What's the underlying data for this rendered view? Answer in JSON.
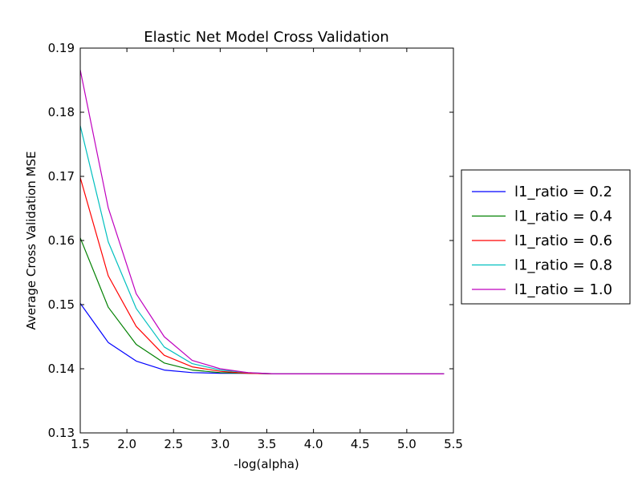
{
  "chart_data": {
    "type": "line",
    "title": "Elastic Net Model Cross Validation",
    "xlabel": "-log(alpha)",
    "ylabel": "Average Cross Validation MSE",
    "xlim": [
      1.5,
      5.5
    ],
    "ylim": [
      0.13,
      0.19
    ],
    "xticks": [
      1.5,
      2.0,
      2.5,
      3.0,
      3.5,
      4.0,
      4.5,
      5.0,
      5.5
    ],
    "xtick_labels": [
      "1.5",
      "2.0",
      "2.5",
      "3.0",
      "3.5",
      "4.0",
      "4.5",
      "5.0",
      "5.5"
    ],
    "yticks": [
      0.13,
      0.14,
      0.15,
      0.16,
      0.17,
      0.18,
      0.19
    ],
    "ytick_labels": [
      "0.13",
      "0.14",
      "0.15",
      "0.16",
      "0.17",
      "0.18",
      "0.19"
    ],
    "grid": false,
    "legend_position": "outside-right",
    "x": [
      1.5,
      1.8,
      2.1,
      2.4,
      2.7,
      3.0,
      3.3,
      3.6,
      3.9,
      4.2,
      4.5,
      4.8,
      5.1,
      5.4
    ],
    "series": [
      {
        "name": "l1_ratio = 0.2",
        "color": "#0000ff",
        "values": [
          0.1502,
          0.1441,
          0.1412,
          0.1398,
          0.1394,
          0.1393,
          0.1393,
          0.1392,
          0.1392,
          0.1392,
          0.1392,
          0.1392,
          0.1392,
          0.1392
        ]
      },
      {
        "name": "l1_ratio = 0.4",
        "color": "#008000",
        "values": [
          0.1604,
          0.1496,
          0.1438,
          0.1409,
          0.1398,
          0.1394,
          0.1393,
          0.1392,
          0.1392,
          0.1392,
          0.1392,
          0.1392,
          0.1392,
          0.1392
        ]
      },
      {
        "name": "l1_ratio = 0.6",
        "color": "#ff0000",
        "values": [
          0.1698,
          0.1545,
          0.1466,
          0.1421,
          0.1403,
          0.1396,
          0.1393,
          0.1392,
          0.1392,
          0.1392,
          0.1392,
          0.1392,
          0.1392,
          0.1392
        ]
      },
      {
        "name": "l1_ratio = 0.8",
        "color": "#00bfbf",
        "values": [
          0.1779,
          0.1598,
          0.1494,
          0.1434,
          0.1408,
          0.1398,
          0.1394,
          0.1392,
          0.1392,
          0.1392,
          0.1392,
          0.1392,
          0.1392,
          0.1392
        ]
      },
      {
        "name": "l1_ratio = 1.0",
        "color": "#bf00bf",
        "values": [
          0.1866,
          0.1651,
          0.1517,
          0.145,
          0.1413,
          0.14,
          0.1394,
          0.1392,
          0.1392,
          0.1392,
          0.1392,
          0.1392,
          0.1392,
          0.1392
        ]
      }
    ]
  }
}
